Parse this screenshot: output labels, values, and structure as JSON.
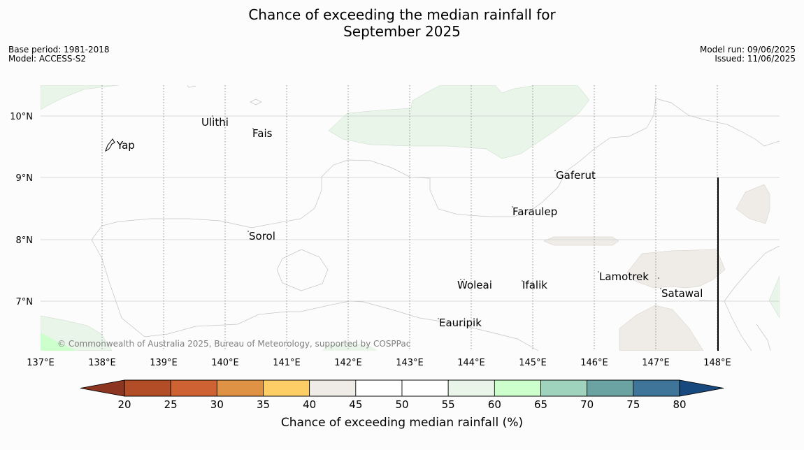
{
  "title": {
    "line1": "Chance of exceeding the median rainfall for",
    "line2": "September 2025"
  },
  "meta_left": {
    "base_period": "Base period: 1981-2018",
    "model": "Model: ACCESS-S2"
  },
  "meta_right": {
    "model_run": "Model run: 09/06/2025",
    "issued": "Issued: 11/06/2025"
  },
  "map": {
    "longitude_labels": [
      "137°E",
      "138°E",
      "139°E",
      "140°E",
      "141°E",
      "142°E",
      "143°E",
      "144°E",
      "145°E",
      "146°E",
      "147°E",
      "148°E"
    ],
    "latitude_labels": [
      "10°N",
      "9°N",
      "8°N",
      "7°N"
    ],
    "places": [
      "Ulithi",
      "Fais",
      "Yap",
      "Gaferut",
      "Faraulep",
      "Sorol",
      "Lamotrek",
      "Woleai",
      "Ifalik",
      "Satawal",
      "Eauripik"
    ],
    "copyright": "© Commonwealth of Australia 2025, Bureau of Meteorology, supported by COSPPac"
  },
  "colorbar": {
    "ticks": [
      "20",
      "25",
      "30",
      "35",
      "40",
      "45",
      "50",
      "55",
      "60",
      "65",
      "70",
      "75",
      "80"
    ],
    "colors": [
      "#b34d27",
      "#cf6233",
      "#e09244",
      "#fdcd66",
      "#efece7",
      "#ffffff",
      "#ffffff",
      "#e8f5e8",
      "#ccffcc",
      "#9fd3bd",
      "#6ba3a3",
      "#3f7598"
    ],
    "under_color": "#8c3520",
    "over_color": "#17487e",
    "label": "Chance of exceeding median rainfall (%)"
  }
}
